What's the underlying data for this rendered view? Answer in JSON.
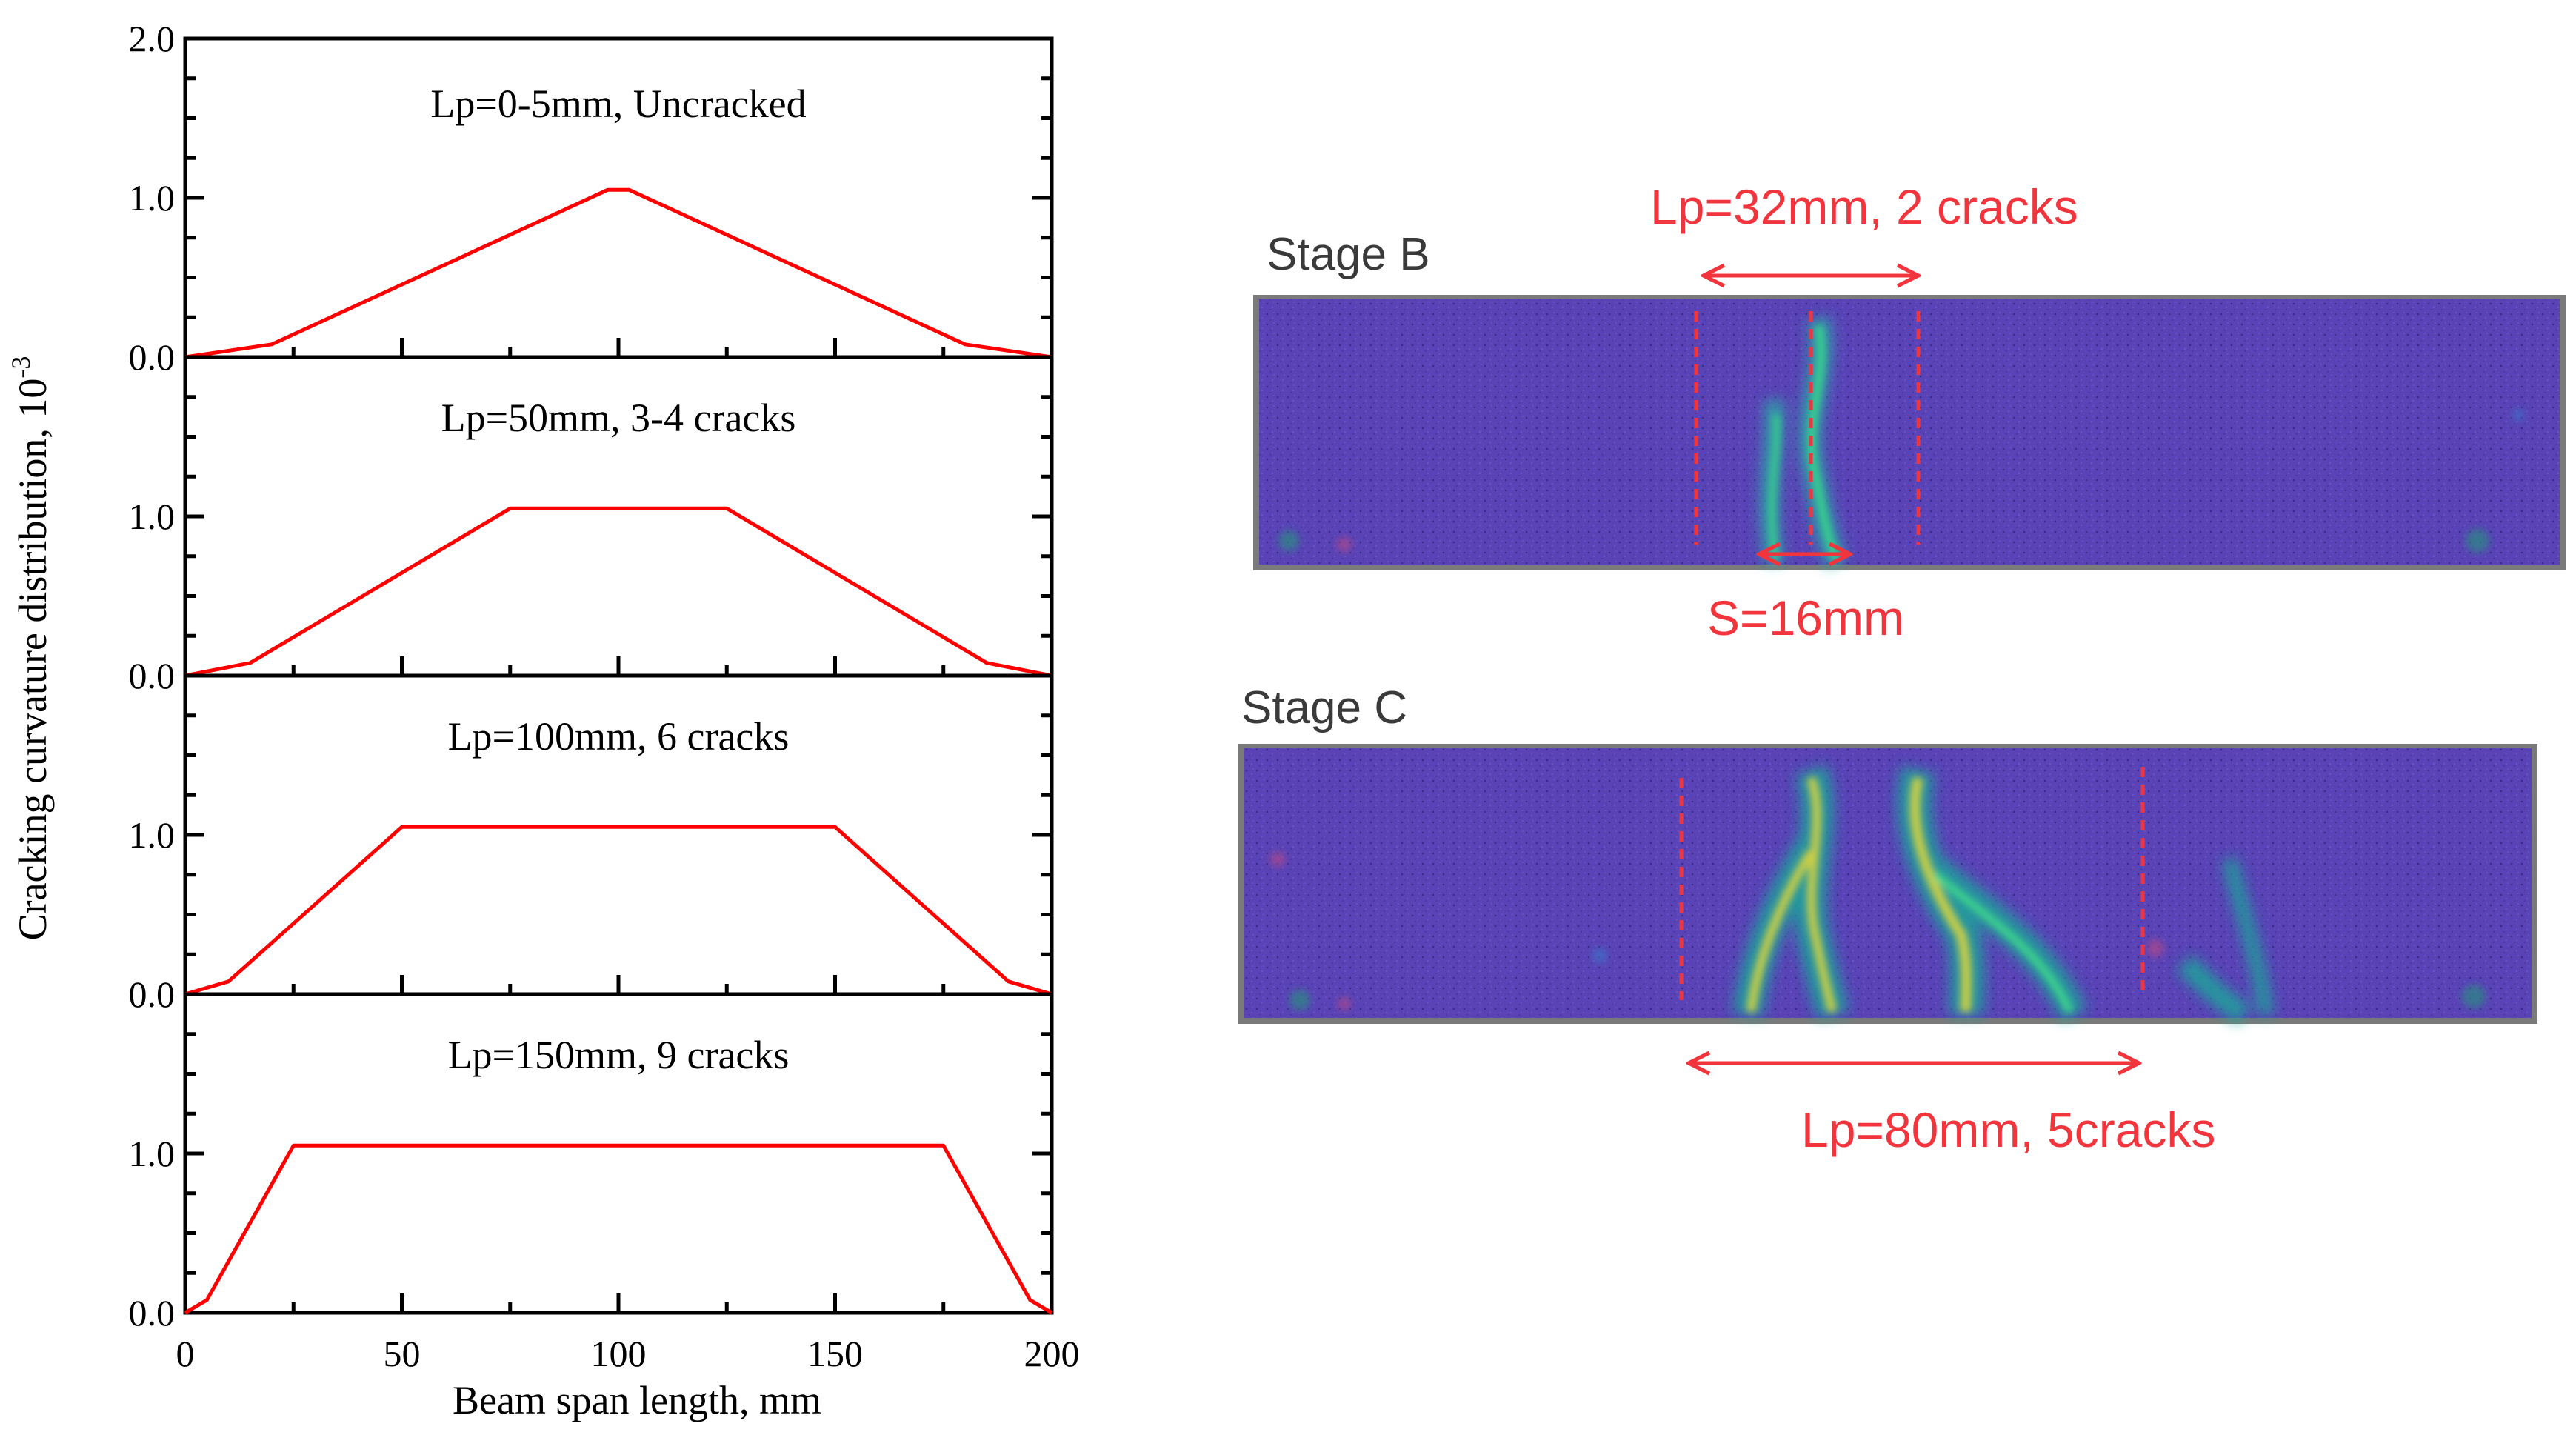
{
  "chart_data": {
    "type": "line",
    "xlabel": "Beam span length, mm",
    "ylabel": "Cracking curvature distribution, 10",
    "ylabel_superscript": "-3",
    "xlim": [
      0,
      200
    ],
    "x_ticks": [
      "0",
      "50",
      "100",
      "150",
      "200"
    ],
    "y_ticks": [
      "0.0",
      "1.0"
    ],
    "y_top_tick": "2.0",
    "ylim": [
      0,
      2.0
    ],
    "series_color": "#ff0000",
    "panels": [
      {
        "label": "Lp=0-5mm, Uncracked",
        "x": [
          0,
          20,
          97.5,
          102.5,
          180,
          200
        ],
        "y": [
          0,
          0.08,
          1.05,
          1.05,
          0.08,
          0
        ]
      },
      {
        "label": "Lp=50mm, 3-4 cracks",
        "x": [
          0,
          15,
          75,
          125,
          185,
          200
        ],
        "y": [
          0,
          0.08,
          1.05,
          1.05,
          0.08,
          0
        ]
      },
      {
        "label": "Lp=100mm, 6 cracks",
        "x": [
          0,
          10,
          50,
          150,
          190,
          200
        ],
        "y": [
          0,
          0.08,
          1.05,
          1.05,
          0.08,
          0
        ]
      },
      {
        "label": "Lp=150mm, 9 cracks",
        "x": [
          0,
          5,
          25,
          175,
          195,
          200
        ],
        "y": [
          0,
          0.08,
          1.05,
          1.05,
          0.08,
          0
        ]
      }
    ]
  },
  "images": {
    "stage_b": {
      "label": "Stage B",
      "top_annotation": "Lp=32mm, 2 cracks",
      "bottom_annotation": "S=16mm"
    },
    "stage_c": {
      "label": "Stage C",
      "bottom_annotation": "Lp=80mm, 5cracks"
    }
  },
  "colors": {
    "annotation": "#f2343c",
    "specimen_base": "#5a44b8",
    "crack_green": "#2fd27a",
    "crack_yellow": "#d8c84a"
  }
}
